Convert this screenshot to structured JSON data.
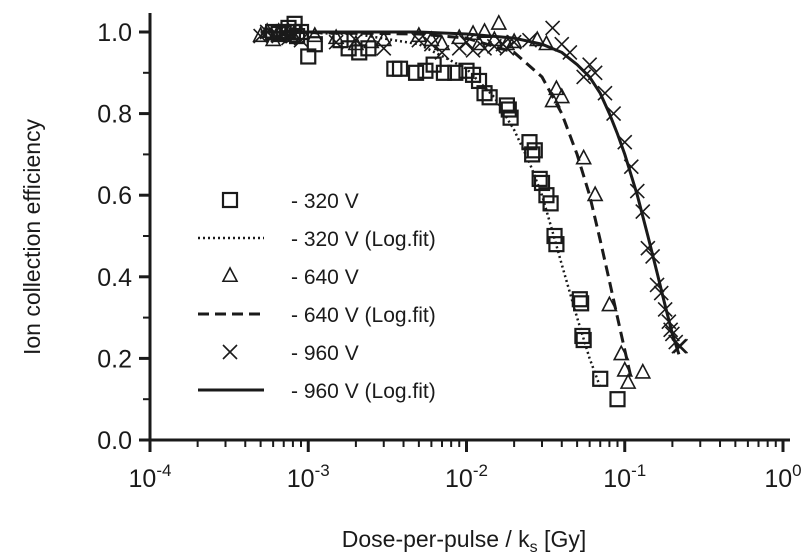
{
  "chart_data": {
    "type": "scatter",
    "xlabel": "Dose-per-pulse / k",
    "xlabel_subscript": "s",
    "xlabel_unit": " [Gy]",
    "ylabel": "Ion collection efficiency",
    "xscale": "log",
    "xlim": [
      0.0001,
      1
    ],
    "ylim": [
      0.0,
      1.0
    ],
    "x_ticks": [
      {
        "base": "10",
        "exp": "-4",
        "value": 0.0001
      },
      {
        "base": "10",
        "exp": "-3",
        "value": 0.001
      },
      {
        "base": "10",
        "exp": "-2",
        "value": 0.01
      },
      {
        "base": "10",
        "exp": "-1",
        "value": 0.1
      },
      {
        "base": "10",
        "exp": "0",
        "value": 1
      }
    ],
    "y_ticks": [
      {
        "label": "0.0",
        "value": 0.0
      },
      {
        "label": "0.2",
        "value": 0.2
      },
      {
        "label": "0.4",
        "value": 0.4
      },
      {
        "label": "0.6",
        "value": 0.6
      },
      {
        "label": "0.8",
        "value": 0.8
      },
      {
        "label": "1.0",
        "value": 1.0
      }
    ],
    "legend_position": "center-left",
    "grid": false,
    "series": [
      {
        "name": "- 320 V",
        "kind": "points",
        "marker": "square",
        "points": [
          [
            0.0006,
            1.0
          ],
          [
            0.00065,
            0.995
          ],
          [
            0.0007,
            1.0
          ],
          [
            0.00075,
            1.01
          ],
          [
            0.0008,
            1.0
          ],
          [
            0.00082,
            1.02
          ],
          [
            0.00085,
            0.99
          ],
          [
            0.0009,
            1.0
          ],
          [
            0.001,
            0.94
          ],
          [
            0.0011,
            0.97
          ],
          [
            0.0016,
            0.98
          ],
          [
            0.0018,
            0.96
          ],
          [
            0.0021,
            0.95
          ],
          [
            0.0024,
            0.96
          ],
          [
            0.0035,
            0.91
          ],
          [
            0.0038,
            0.91
          ],
          [
            0.0048,
            0.9
          ],
          [
            0.0055,
            0.905
          ],
          [
            0.0062,
            0.92
          ],
          [
            0.0072,
            0.9
          ],
          [
            0.0085,
            0.9
          ],
          [
            0.01,
            0.905
          ],
          [
            0.011,
            0.895
          ],
          [
            0.012,
            0.88
          ],
          [
            0.013,
            0.85
          ],
          [
            0.014,
            0.84
          ],
          [
            0.018,
            0.82
          ],
          [
            0.0185,
            0.81
          ],
          [
            0.019,
            0.79
          ],
          [
            0.025,
            0.73
          ],
          [
            0.026,
            0.7
          ],
          [
            0.027,
            0.71
          ],
          [
            0.029,
            0.64
          ],
          [
            0.03,
            0.63
          ],
          [
            0.032,
            0.6
          ],
          [
            0.034,
            0.58
          ],
          [
            0.036,
            0.5
          ],
          [
            0.037,
            0.48
          ],
          [
            0.052,
            0.345
          ],
          [
            0.053,
            0.335
          ],
          [
            0.054,
            0.255
          ],
          [
            0.055,
            0.245
          ],
          [
            0.07,
            0.15
          ],
          [
            0.09,
            0.1
          ]
        ]
      },
      {
        "name": "- 320 V  (Log.fit)",
        "kind": "line",
        "dash": "dotted",
        "points": [
          [
            0.0005,
            1.0
          ],
          [
            0.002,
            0.995
          ],
          [
            0.005,
            0.97
          ],
          [
            0.01,
            0.91
          ],
          [
            0.015,
            0.84
          ],
          [
            0.02,
            0.76
          ],
          [
            0.025,
            0.68
          ],
          [
            0.03,
            0.6
          ],
          [
            0.035,
            0.51
          ],
          [
            0.04,
            0.43
          ],
          [
            0.05,
            0.3
          ],
          [
            0.06,
            0.2
          ],
          [
            0.07,
            0.13
          ]
        ]
      },
      {
        "name": "- 640 V",
        "kind": "points",
        "marker": "triangle",
        "points": [
          [
            0.0005,
            0.99
          ],
          [
            0.00055,
            1.0
          ],
          [
            0.0006,
            0.98
          ],
          [
            0.00065,
            1.0
          ],
          [
            0.0007,
            0.995
          ],
          [
            0.00075,
            1.0
          ],
          [
            0.0008,
            0.99
          ],
          [
            0.0011,
            0.99
          ],
          [
            0.0015,
            0.985
          ],
          [
            0.002,
            0.97
          ],
          [
            0.0025,
            0.975
          ],
          [
            0.003,
            0.98
          ],
          [
            0.005,
            0.99
          ],
          [
            0.006,
            0.98
          ],
          [
            0.007,
            0.97
          ],
          [
            0.009,
            0.985
          ],
          [
            0.011,
            0.995
          ],
          [
            0.012,
            0.97
          ],
          [
            0.013,
            1.0
          ],
          [
            0.015,
            0.98
          ],
          [
            0.016,
            1.02
          ],
          [
            0.018,
            0.97
          ],
          [
            0.02,
            0.975
          ],
          [
            0.028,
            0.98
          ],
          [
            0.032,
            0.97
          ],
          [
            0.035,
            0.83
          ],
          [
            0.037,
            0.86
          ],
          [
            0.04,
            0.84
          ],
          [
            0.055,
            0.69
          ],
          [
            0.065,
            0.6
          ],
          [
            0.08,
            0.33
          ],
          [
            0.095,
            0.21
          ],
          [
            0.1,
            0.17
          ],
          [
            0.105,
            0.14
          ],
          [
            0.13,
            0.165
          ]
        ]
      },
      {
        "name": "- 640 V (Log.fit)",
        "kind": "line",
        "dash": "dashed",
        "points": [
          [
            0.0005,
            1.0
          ],
          [
            0.005,
            0.995
          ],
          [
            0.01,
            0.985
          ],
          [
            0.02,
            0.95
          ],
          [
            0.03,
            0.89
          ],
          [
            0.04,
            0.8
          ],
          [
            0.05,
            0.7
          ],
          [
            0.06,
            0.6
          ],
          [
            0.07,
            0.49
          ],
          [
            0.08,
            0.39
          ],
          [
            0.09,
            0.3
          ],
          [
            0.1,
            0.22
          ],
          [
            0.11,
            0.15
          ]
        ]
      },
      {
        "name": "- 960 V",
        "kind": "points",
        "marker": "cross",
        "points": [
          [
            0.0005,
            0.99
          ],
          [
            0.00055,
            1.0
          ],
          [
            0.0006,
            0.995
          ],
          [
            0.00065,
            0.99
          ],
          [
            0.0007,
            1.0
          ],
          [
            0.00075,
            0.985
          ],
          [
            0.0008,
            0.99
          ],
          [
            0.0009,
            0.98
          ],
          [
            0.0015,
            0.975
          ],
          [
            0.002,
            0.98
          ],
          [
            0.003,
            0.96
          ],
          [
            0.005,
            0.98
          ],
          [
            0.006,
            0.97
          ],
          [
            0.007,
            0.95
          ],
          [
            0.009,
            0.96
          ],
          [
            0.01,
            0.975
          ],
          [
            0.011,
            0.955
          ],
          [
            0.013,
            0.96
          ],
          [
            0.015,
            0.965
          ],
          [
            0.017,
            0.97
          ],
          [
            0.018,
            0.96
          ],
          [
            0.02,
            0.975
          ],
          [
            0.025,
            0.98
          ],
          [
            0.035,
            1.01
          ],
          [
            0.04,
            0.97
          ],
          [
            0.045,
            0.95
          ],
          [
            0.055,
            0.89
          ],
          [
            0.06,
            0.92
          ],
          [
            0.065,
            0.9
          ],
          [
            0.075,
            0.85
          ],
          [
            0.085,
            0.8
          ],
          [
            0.1,
            0.73
          ],
          [
            0.11,
            0.67
          ],
          [
            0.12,
            0.61
          ],
          [
            0.13,
            0.56
          ],
          [
            0.14,
            0.47
          ],
          [
            0.15,
            0.45
          ],
          [
            0.16,
            0.38
          ],
          [
            0.17,
            0.36
          ],
          [
            0.18,
            0.32
          ],
          [
            0.19,
            0.29
          ],
          [
            0.195,
            0.27
          ],
          [
            0.2,
            0.26
          ],
          [
            0.21,
            0.24
          ],
          [
            0.22,
            0.23
          ],
          [
            0.225,
            0.23
          ]
        ]
      },
      {
        "name": "- 960 V (Log.fit)",
        "kind": "line",
        "dash": "solid",
        "points": [
          [
            0.0005,
            1.0
          ],
          [
            0.005,
            1.0
          ],
          [
            0.01,
            0.995
          ],
          [
            0.02,
            0.985
          ],
          [
            0.03,
            0.97
          ],
          [
            0.04,
            0.95
          ],
          [
            0.05,
            0.92
          ],
          [
            0.06,
            0.89
          ],
          [
            0.07,
            0.85
          ],
          [
            0.08,
            0.8
          ],
          [
            0.09,
            0.75
          ],
          [
            0.1,
            0.7
          ],
          [
            0.12,
            0.6
          ],
          [
            0.14,
            0.5
          ],
          [
            0.16,
            0.41
          ],
          [
            0.18,
            0.33
          ],
          [
            0.2,
            0.26
          ],
          [
            0.22,
            0.21
          ]
        ]
      }
    ]
  }
}
